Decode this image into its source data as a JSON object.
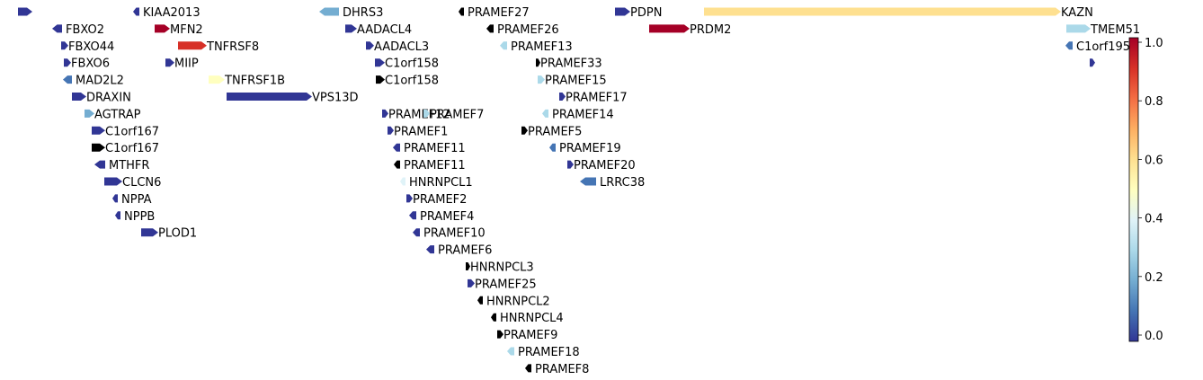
{
  "chart_data": {
    "type": "gene_track",
    "colormap": "RdYlBu_r",
    "colorbar": {
      "ticks": [
        0.0,
        0.2,
        0.4,
        0.6,
        0.8,
        1.0
      ],
      "tick_labels": [
        "0.0",
        "0.2",
        "0.4",
        "0.6",
        "0.8",
        "1.0"
      ],
      "range": [
        0,
        1
      ]
    },
    "genes": [
      {
        "name": "",
        "strand": "+",
        "color": "#313695"
      },
      {
        "name": "KIAA2013",
        "strand": "-",
        "color": "#313695"
      },
      {
        "name": "FBXO2",
        "strand": "-",
        "color": "#313695"
      },
      {
        "name": "FBXO44",
        "strand": "+",
        "color": "#313695"
      },
      {
        "name": "FBXO6",
        "strand": "+",
        "color": "#313695"
      },
      {
        "name": "MAD2L2",
        "strand": "-",
        "color": "#4575b4"
      },
      {
        "name": "DRAXIN",
        "strand": "+",
        "color": "#313695"
      },
      {
        "name": "AGTRAP",
        "strand": "+",
        "color": "#74add1"
      },
      {
        "name": "C1orf167",
        "strand": "+",
        "color": "#313695"
      },
      {
        "name": "C1orf167",
        "strand": "+",
        "color": "#000000"
      },
      {
        "name": "MTHFR",
        "strand": "-",
        "color": "#313695"
      },
      {
        "name": "CLCN6",
        "strand": "+",
        "color": "#313695"
      },
      {
        "name": "NPPA",
        "strand": "-",
        "color": "#313695"
      },
      {
        "name": "NPPB",
        "strand": "-",
        "color": "#313695"
      },
      {
        "name": "PLOD1",
        "strand": "+",
        "color": "#313695"
      },
      {
        "name": "MFN2",
        "strand": "+",
        "color": "#a50026"
      },
      {
        "name": "TNFRSF8",
        "strand": "+",
        "color": "#d73027"
      },
      {
        "name": "MIIP",
        "strand": "+",
        "color": "#313695"
      },
      {
        "name": "TNFRSF1B",
        "strand": "+",
        "color": "#ffffbf"
      },
      {
        "name": "VPS13D",
        "strand": "+",
        "color": "#313695"
      },
      {
        "name": "DHRS3",
        "strand": "-",
        "color": "#74add1"
      },
      {
        "name": "AADACL4",
        "strand": "+",
        "color": "#313695"
      },
      {
        "name": "AADACL3",
        "strand": "+",
        "color": "#313695"
      },
      {
        "name": "C1orf158",
        "strand": "+",
        "color": "#313695"
      },
      {
        "name": "C1orf158",
        "strand": "+",
        "color": "#000000"
      },
      {
        "name": "PRAMEF12",
        "strand": "+",
        "color": "#313695"
      },
      {
        "name": "PRAMEF1",
        "strand": "+",
        "color": "#313695"
      },
      {
        "name": "PRAMEF11",
        "strand": "-",
        "color": "#313695"
      },
      {
        "name": "PRAMEF11",
        "strand": "-",
        "color": "#000000"
      },
      {
        "name": "HNRNPCL1",
        "strand": "-",
        "color": "#e0f3f8"
      },
      {
        "name": "PRAMEF2",
        "strand": "+",
        "color": "#313695"
      },
      {
        "name": "PRAMEF4",
        "strand": "-",
        "color": "#313695"
      },
      {
        "name": "PRAMEF10",
        "strand": "-",
        "color": "#313695"
      },
      {
        "name": "PRAMEF6",
        "strand": "-",
        "color": "#313695"
      },
      {
        "name": "HNRNPCL3",
        "strand": "+",
        "color": "#000000"
      },
      {
        "name": "PRAMEF25",
        "strand": "+",
        "color": "#313695"
      },
      {
        "name": "HNRNPCL2",
        "strand": "-",
        "color": "#000000"
      },
      {
        "name": "HNRNPCL4",
        "strand": "-",
        "color": "#000000"
      },
      {
        "name": "PRAMEF9",
        "strand": "+",
        "color": "#000000"
      },
      {
        "name": "PRAMEF18",
        "strand": "-",
        "color": "#abd9e9"
      },
      {
        "name": "PRAMEF8",
        "strand": "-",
        "color": "#000000"
      },
      {
        "name": "PRAMEF27",
        "strand": "-",
        "color": "#000000"
      },
      {
        "name": "PRAMEF26",
        "strand": "-",
        "color": "#000000"
      },
      {
        "name": "PRAMEF13",
        "strand": "-",
        "color": "#abd9e9"
      },
      {
        "name": "PRAMEF7",
        "strand": "+",
        "color": "#abd9e9"
      },
      {
        "name": "PRAMEF33",
        "strand": "+",
        "color": "#000000"
      },
      {
        "name": "PRAMEF15",
        "strand": "+",
        "color": "#abd9e9"
      },
      {
        "name": "PRAMEF17",
        "strand": "+",
        "color": "#313695"
      },
      {
        "name": "PRAMEF14",
        "strand": "-",
        "color": "#abd9e9"
      },
      {
        "name": "PRAMEF5",
        "strand": "+",
        "color": "#000000"
      },
      {
        "name": "PRAMEF19",
        "strand": "-",
        "color": "#4575b4"
      },
      {
        "name": "PRAMEF20",
        "strand": "+",
        "color": "#313695"
      },
      {
        "name": "LRRC38",
        "strand": "-",
        "color": "#4575b4"
      },
      {
        "name": "PDPN",
        "strand": "+",
        "color": "#313695"
      },
      {
        "name": "PRDM2",
        "strand": "+",
        "color": "#a50026"
      },
      {
        "name": "KAZN",
        "strand": "+",
        "color": "#fee090"
      },
      {
        "name": "TMEM51",
        "strand": "+",
        "color": "#abd9e9"
      },
      {
        "name": "C1orf195",
        "strand": "-",
        "color": "#4575b4"
      },
      {
        "name": "",
        "strand": "+",
        "color": "#313695"
      }
    ]
  }
}
